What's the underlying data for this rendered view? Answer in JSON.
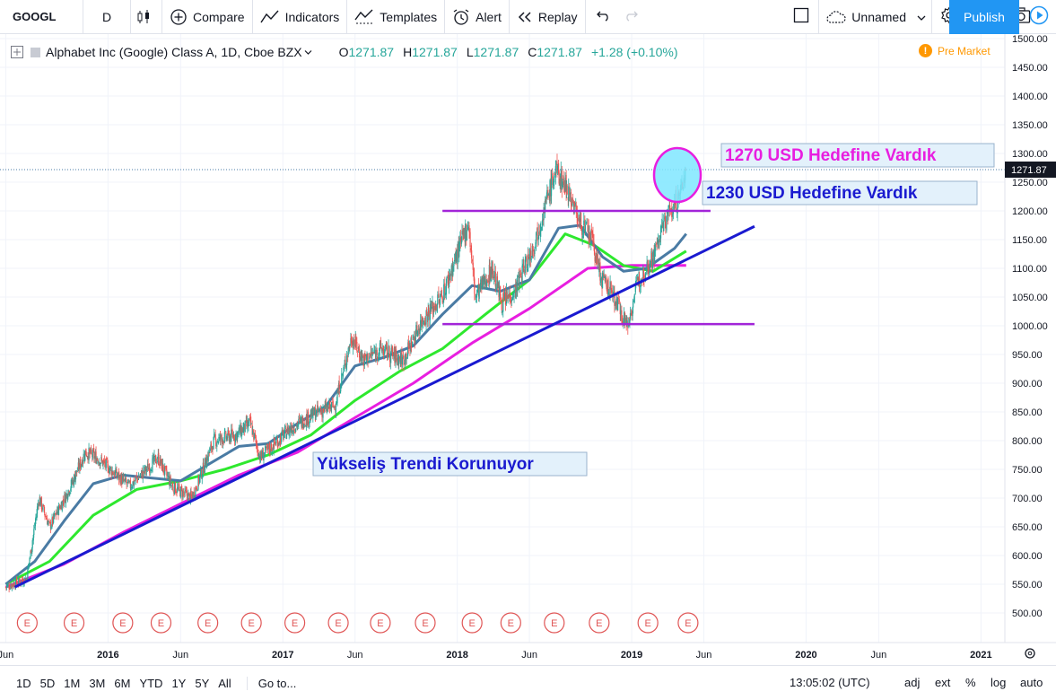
{
  "toolbar": {
    "symbol": "GOOGL",
    "interval": "D",
    "compare": "Compare",
    "indicators": "Indicators",
    "templates": "Templates",
    "alert": "Alert",
    "replay": "Replay",
    "layout_name": "Unnamed",
    "publish": "Publish"
  },
  "legend": {
    "title": "Alphabet Inc (Google) Class A, 1D, Cboe BZX",
    "o_label": "O",
    "o": "1271.87",
    "h_label": "H",
    "h": "1271.87",
    "l_label": "L",
    "l": "1271.87",
    "c_label": "C",
    "c": "1271.87",
    "change": "+1.28 (+0.10%)",
    "premarket": "Pre Market"
  },
  "colors": {
    "candle_up": "#26a69a",
    "candle_down": "#ef5350",
    "ma_blue": "#4a7ba4",
    "ma_green": "#2ee82e",
    "ma_magenta": "#e81ee0",
    "trendline": "#1a1ad0",
    "hline": "#a224d8",
    "circle_fill": "#7fe6ff",
    "circle_stroke": "#e81ee0",
    "earnings": "#e05656",
    "price_tag": "#131722"
  },
  "chart_data": {
    "type": "line",
    "title": "Alphabet Inc (Google) Class A, 1D, Cboe BZX",
    "ylim": [
      470,
      1510
    ],
    "y_ticks": [
      "500.00",
      "550.00",
      "600.00",
      "650.00",
      "700.00",
      "750.00",
      "800.00",
      "850.00",
      "900.00",
      "950.00",
      "1000.00",
      "1050.00",
      "1100.00",
      "1150.00",
      "1200.00",
      "1250.00",
      "1300.00",
      "1350.00",
      "1400.00",
      "1450.00",
      "1500.00"
    ],
    "x_ticks": [
      "Jun",
      "2016",
      "Jun",
      "2017",
      "Jun",
      "2018",
      "Jun",
      "2019",
      "Jun",
      "2020",
      "Jun",
      "2021"
    ],
    "x_range": [
      "2015-05-20",
      "2021-02-20"
    ],
    "last_price_label": "1271.87",
    "series": [
      {
        "kind": "price",
        "x": [
          "2015-06-01",
          "2015-07-15",
          "2015-08-10",
          "2015-09-01",
          "2015-10-15",
          "2015-11-15",
          "2015-12-10",
          "2016-01-20",
          "2016-02-15",
          "2016-04-15",
          "2016-05-15",
          "2016-06-25",
          "2016-08-10",
          "2016-09-25",
          "2016-10-25",
          "2016-11-15",
          "2017-01-15",
          "2017-03-15",
          "2017-04-20",
          "2017-05-25",
          "2017-06-20",
          "2017-07-25",
          "2017-09-10",
          "2017-10-20",
          "2017-11-30",
          "2018-01-25",
          "2018-02-08",
          "2018-03-15",
          "2018-04-05",
          "2018-05-01",
          "2018-06-10",
          "2018-07-26",
          "2018-08-20",
          "2018-09-15",
          "2018-10-10",
          "2018-10-30",
          "2018-11-20",
          "2018-12-24",
          "2019-01-15",
          "2019-02-15",
          "2019-03-15",
          "2019-04-10",
          "2019-04-25"
        ],
        "values": [
          545,
          560,
          700,
          650,
          720,
          780,
          770,
          740,
          720,
          770,
          720,
          700,
          800,
          810,
          830,
          770,
          820,
          850,
          860,
          980,
          940,
          960,
          940,
          1010,
          1050,
          1180,
          1050,
          1100,
          1040,
          1060,
          1140,
          1270,
          1240,
          1180,
          1150,
          1080,
          1060,
          1000,
          1080,
          1120,
          1190,
          1220,
          1272
        ]
      },
      {
        "kind": "ma_blue",
        "x": [
          "2015-06-01",
          "2015-08-01",
          "2015-10-01",
          "2015-12-01",
          "2016-02-01",
          "2016-04-01",
          "2016-06-01",
          "2016-08-01",
          "2016-10-01",
          "2016-12-01",
          "2017-02-01",
          "2017-04-01",
          "2017-06-01",
          "2017-08-01",
          "2017-10-01",
          "2017-12-01",
          "2018-02-01",
          "2018-04-01",
          "2018-06-01",
          "2018-08-01",
          "2018-09-15",
          "2018-11-01",
          "2018-12-15",
          "2019-02-01",
          "2019-04-01",
          "2019-04-25"
        ],
        "values": [
          550,
          590,
          660,
          725,
          740,
          735,
          730,
          760,
          790,
          795,
          830,
          860,
          930,
          945,
          965,
          1020,
          1070,
          1060,
          1080,
          1170,
          1175,
          1120,
          1095,
          1100,
          1135,
          1160
        ]
      },
      {
        "kind": "ma_green",
        "x": [
          "2015-06-01",
          "2015-09-01",
          "2015-12-01",
          "2016-03-01",
          "2016-06-01",
          "2016-09-01",
          "2016-12-01",
          "2017-03-01",
          "2017-06-01",
          "2017-09-01",
          "2017-12-01",
          "2018-03-01",
          "2018-06-01",
          "2018-08-15",
          "2018-10-15",
          "2018-12-15",
          "2019-02-15",
          "2019-04-25"
        ],
        "values": [
          550,
          590,
          670,
          715,
          730,
          750,
          775,
          810,
          870,
          920,
          960,
          1020,
          1080,
          1160,
          1140,
          1105,
          1095,
          1130
        ]
      },
      {
        "kind": "ma_magenta",
        "x": [
          "2015-06-01",
          "2015-10-01",
          "2016-02-01",
          "2016-06-01",
          "2016-10-01",
          "2017-02-01",
          "2017-06-01",
          "2017-10-01",
          "2018-02-01",
          "2018-06-01",
          "2018-10-01",
          "2019-01-01",
          "2019-04-25"
        ],
        "values": [
          545,
          585,
          640,
          690,
          740,
          780,
          840,
          900,
          970,
          1030,
          1100,
          1105,
          1105
        ]
      }
    ],
    "annotations": [
      {
        "kind": "text",
        "text": "1270 USD Hedefine Vardık",
        "color": "#e81ee0"
      },
      {
        "kind": "text",
        "text": "1230 USD Hedefine Vardık",
        "color": "#1a1ad0"
      },
      {
        "kind": "text",
        "text": "Yükseliş Trendi Korunuyor",
        "color": "#1a1ad0"
      },
      {
        "kind": "hline",
        "y": 1200,
        "x": [
          "2017-12-01",
          "2019-06-15"
        ]
      },
      {
        "kind": "hline",
        "y": 1003,
        "x": [
          "2017-12-01",
          "2019-09-15"
        ]
      },
      {
        "kind": "trendline",
        "x": [
          "2015-06-20",
          "2019-09-15"
        ],
        "y": [
          545,
          1173
        ]
      }
    ],
    "earnings_markers": [
      "2015-07-16",
      "2015-10-22",
      "2016-02-01",
      "2016-04-21",
      "2016-07-28",
      "2016-10-27",
      "2017-01-26",
      "2017-04-27",
      "2017-07-24",
      "2017-10-26",
      "2018-02-01",
      "2018-04-23",
      "2018-07-23",
      "2018-10-25",
      "2019-02-04",
      "2019-04-29"
    ],
    "earnings_label": "E"
  },
  "bottombar": {
    "ranges": [
      "1D",
      "5D",
      "1M",
      "3M",
      "6M",
      "YTD",
      "1Y",
      "5Y",
      "All"
    ],
    "goto": "Go to...",
    "clock": "13:05:02 (UTC)",
    "adj": "adj",
    "ext": "ext",
    "pct": "%",
    "log": "log",
    "auto": "auto"
  }
}
